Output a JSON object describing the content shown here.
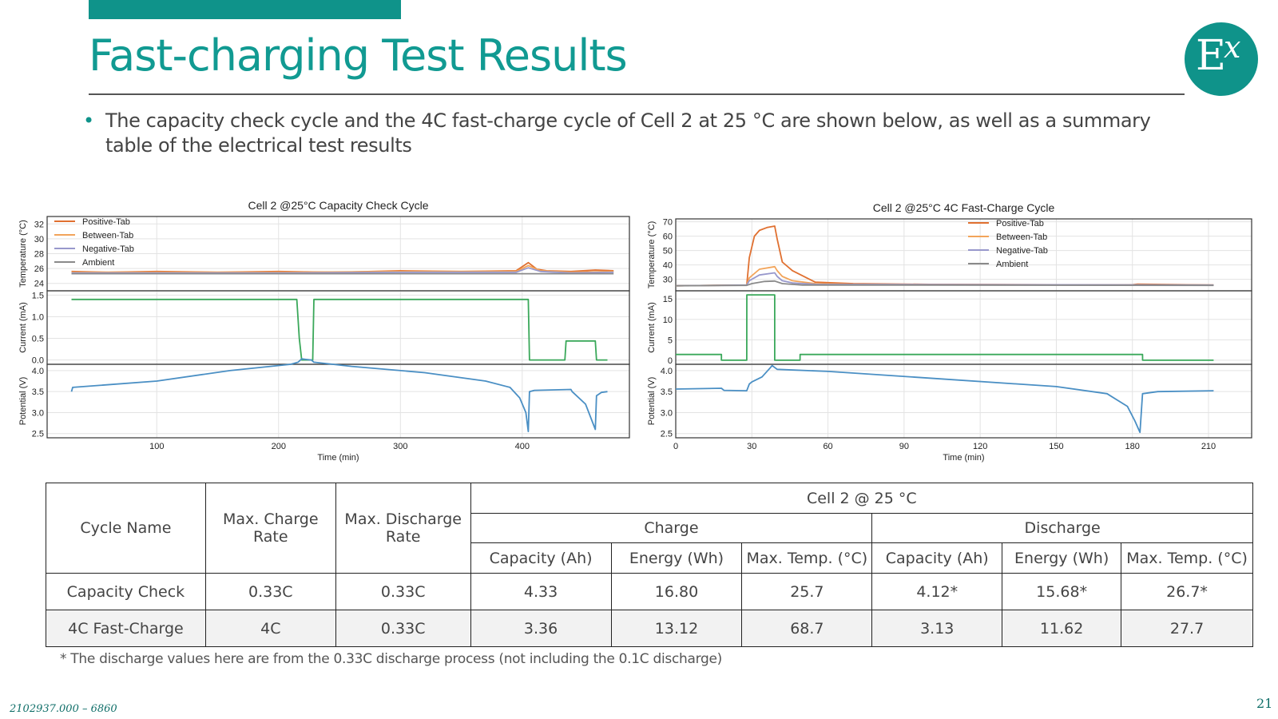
{
  "slide": {
    "title": "Fast-charging Test Results",
    "bullet": "The capacity check cycle and the 4C fast-charge cycle of Cell 2 at 25 °C are shown below, as well as a summary table of the electrical test results",
    "logo_letter": "E",
    "logo_superscript": "x",
    "footnote": "* The discharge values here are from the 0.33C discharge process (not including the 0.1C discharge)",
    "doc_id": "2102937.000 – 6860",
    "page_number": "21",
    "colors": {
      "teal": "#0f938a",
      "positive": "#e07030",
      "between": "#f2a45a",
      "negative": "#9898cc",
      "ambient": "#8a8a8a",
      "current": "#3aa85a",
      "potential": "#4a8fc4"
    }
  },
  "chart_data": [
    {
      "type": "line",
      "title": "Cell 2 @25°C Capacity Check Cycle",
      "xlabel": "Time (min)",
      "xlim": [
        10,
        488
      ],
      "xticks": [
        "100",
        "200",
        "300",
        "400"
      ],
      "legend": [
        "Positive-Tab",
        "Between-Tab",
        "Negative-Tab",
        "Ambient"
      ],
      "legend_position": "top-left",
      "panels": [
        {
          "ylabel": "Temperature (°C)",
          "ylim": [
            23,
            33
          ],
          "yticks": [
            "24",
            "26",
            "28",
            "30",
            "32"
          ],
          "series": [
            {
              "name": "Positive-Tab",
              "x": [
                30,
                60,
                100,
                150,
                200,
                250,
                300,
                350,
                395,
                405,
                412,
                420,
                440,
                460,
                475
              ],
              "y": [
                25.6,
                25.5,
                25.6,
                25.5,
                25.6,
                25.5,
                25.7,
                25.6,
                25.7,
                26.8,
                25.9,
                25.7,
                25.6,
                25.8,
                25.7
              ]
            },
            {
              "name": "Between-Tab",
              "x": [
                30,
                100,
                200,
                300,
                395,
                405,
                415,
                440,
                475
              ],
              "y": [
                25.5,
                25.5,
                25.5,
                25.6,
                25.6,
                26.4,
                25.7,
                25.5,
                25.6
              ]
            },
            {
              "name": "Negative-Tab",
              "x": [
                30,
                100,
                200,
                300,
                395,
                405,
                415,
                440,
                475
              ],
              "y": [
                25.4,
                25.4,
                25.4,
                25.5,
                25.5,
                26.1,
                25.6,
                25.4,
                25.5
              ]
            },
            {
              "name": "Ambient",
              "x": [
                30,
                100,
                200,
                300,
                400,
                475
              ],
              "y": [
                25.3,
                25.3,
                25.3,
                25.3,
                25.3,
                25.3
              ]
            }
          ]
        },
        {
          "ylabel": "Current (mA)",
          "ylim": [
            -0.1,
            1.6
          ],
          "yticks": [
            "0.0",
            "0.5",
            "1.0",
            "1.5"
          ],
          "series": [
            {
              "name": "Current",
              "x": [
                30,
                215,
                217,
                219,
                228,
                229,
                405,
                406,
                435,
                436,
                460,
                461,
                470
              ],
              "y": [
                1.4,
                1.4,
                0.5,
                0.0,
                0.0,
                1.4,
                1.4,
                0.0,
                0.0,
                0.44,
                0.44,
                0.0,
                0.0
              ]
            }
          ]
        },
        {
          "ylabel": "Potential (V)",
          "ylim": [
            2.4,
            4.15
          ],
          "yticks": [
            "2.5",
            "3.0",
            "3.5",
            "4.0"
          ],
          "series": [
            {
              "name": "Potential",
              "x": [
                30,
                31,
                100,
                160,
                210,
                216,
                219,
                227,
                229,
                260,
                320,
                370,
                390,
                398,
                403,
                405,
                406,
                410,
                440,
                441,
                452,
                460,
                461,
                465,
                470
              ],
              "y": [
                3.5,
                3.6,
                3.75,
                4.0,
                4.15,
                4.2,
                4.28,
                4.25,
                4.2,
                4.1,
                3.95,
                3.75,
                3.6,
                3.35,
                3.0,
                2.55,
                3.5,
                3.53,
                3.55,
                3.5,
                3.2,
                2.6,
                3.4,
                3.48,
                3.5
              ]
            }
          ]
        }
      ]
    },
    {
      "type": "line",
      "title": "Cell 2 @25°C 4C Fast-Charge Cycle",
      "xlabel": "Time (min)",
      "xlim": [
        0,
        227
      ],
      "xticks": [
        "0",
        "30",
        "60",
        "90",
        "120",
        "150",
        "180",
        "210"
      ],
      "legend": [
        "Positive-Tab",
        "Between-Tab",
        "Negative-Tab",
        "Ambient"
      ],
      "legend_position": "top-center",
      "panels": [
        {
          "ylabel": "Temperature (°C)",
          "ylim": [
            22,
            72
          ],
          "yticks": [
            "30",
            "40",
            "50",
            "60",
            "70"
          ],
          "series": [
            {
              "name": "Positive-Tab",
              "x": [
                0,
                28,
                29,
                31,
                33,
                36,
                39,
                40,
                42,
                46,
                55,
                70,
                100,
                150,
                180,
                182,
                212
              ],
              "y": [
                25.5,
                26,
                45,
                60,
                64,
                66,
                67,
                58,
                42,
                36,
                28,
                27,
                26.5,
                26.2,
                26.2,
                26.6,
                26
              ]
            },
            {
              "name": "Between-Tab",
              "x": [
                0,
                28,
                29,
                33,
                39,
                40,
                42,
                46,
                55,
                70,
                212
              ],
              "y": [
                25.5,
                26,
                31,
                37,
                38.8,
                36,
                32,
                29,
                27,
                26.5,
                26
              ]
            },
            {
              "name": "Negative-Tab",
              "x": [
                0,
                28,
                29,
                33,
                39,
                40,
                42,
                46,
                55,
                212
              ],
              "y": [
                25.5,
                26,
                29,
                33,
                34.5,
                32,
                29,
                27.5,
                26.5,
                26
              ]
            },
            {
              "name": "Ambient",
              "x": [
                0,
                28,
                30,
                35,
                39,
                42,
                50,
                212
              ],
              "y": [
                25.5,
                25.8,
                27,
                28.5,
                28.8,
                27,
                26,
                25.8
              ]
            }
          ]
        },
        {
          "ylabel": "Current (mA)",
          "ylim": [
            -1,
            17
          ],
          "yticks": [
            "0",
            "5",
            "10",
            "15"
          ],
          "series": [
            {
              "name": "Current",
              "x": [
                0,
                18,
                18.01,
                28,
                28.01,
                39,
                39.01,
                49,
                49.01,
                184,
                184.01,
                212
              ],
              "y": [
                1.4,
                1.4,
                0,
                0,
                16,
                16,
                0,
                0,
                1.4,
                1.4,
                0,
                0
              ]
            }
          ]
        },
        {
          "ylabel": "Potential (V)",
          "ylim": [
            2.4,
            4.15
          ],
          "yticks": [
            "2.5",
            "3.0",
            "3.5",
            "4.0"
          ],
          "series": [
            {
              "name": "Potential",
              "x": [
                0,
                18,
                19,
                28,
                29,
                30,
                34,
                37,
                38,
                40,
                60,
                100,
                150,
                170,
                178,
                181,
                183,
                184,
                190,
                212
              ],
              "y": [
                3.56,
                3.58,
                3.53,
                3.52,
                3.68,
                3.73,
                3.85,
                4.05,
                4.12,
                4.03,
                3.98,
                3.82,
                3.62,
                3.45,
                3.15,
                2.8,
                2.53,
                3.45,
                3.5,
                3.52
              ]
            }
          ]
        }
      ]
    }
  ],
  "table": {
    "header_cycle": "Cycle Name",
    "header_charge_rate": "Max. Charge Rate",
    "header_discharge_rate": "Max. Discharge Rate",
    "header_group": "Cell 2 @ 25 °C",
    "header_charge": "Charge",
    "header_discharge": "Discharge",
    "sub_headers": [
      "Capacity (Ah)",
      "Energy (Wh)",
      "Max. Temp. (°C)",
      "Capacity (Ah)",
      "Energy (Wh)",
      "Max. Temp. (°C)"
    ],
    "rows": [
      [
        "Capacity Check",
        "0.33C",
        "0.33C",
        "4.33",
        "16.80",
        "25.7",
        "4.12*",
        "15.68*",
        "26.7*"
      ],
      [
        "4C Fast-Charge",
        "4C",
        "0.33C",
        "3.36",
        "13.12",
        "68.7",
        "3.13",
        "11.62",
        "27.7"
      ]
    ]
  }
}
